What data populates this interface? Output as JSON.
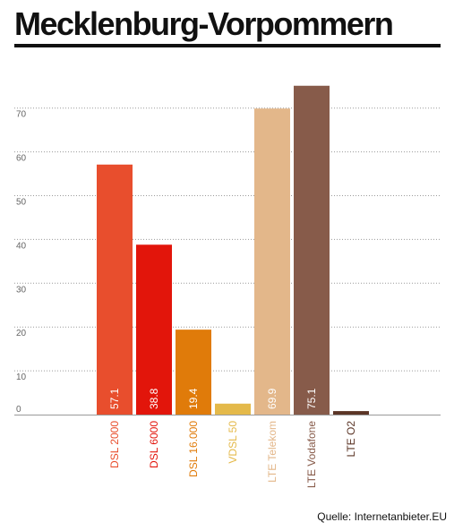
{
  "title": "Mecklenburg-Vorpommern",
  "source": "Quelle: Internetanbieter.EU",
  "chart_data": {
    "type": "bar",
    "title": "Mecklenburg-Vorpommern",
    "xlabel": "",
    "ylabel": "",
    "ylim": [
      0,
      70
    ],
    "yticks": [
      0,
      10,
      20,
      30,
      40,
      50,
      60,
      70
    ],
    "grid": true,
    "categories": [
      "DSL 2000",
      "DSL 6000",
      "DSL 16.000",
      "VDSL 50",
      "LTE Telekom",
      "LTE Vodafone",
      "LTE O2"
    ],
    "values": [
      57.1,
      38.8,
      19.4,
      2.5,
      69.9,
      75.1,
      0.8
    ],
    "value_labels": [
      "57.1",
      "38.8",
      "19.4",
      "",
      "69.9",
      "75.1",
      ""
    ],
    "colors": [
      "#e84e2d",
      "#e2150b",
      "#e07b0a",
      "#e4b94a",
      "#e3b78a",
      "#875b4a",
      "#5b3526"
    ]
  }
}
